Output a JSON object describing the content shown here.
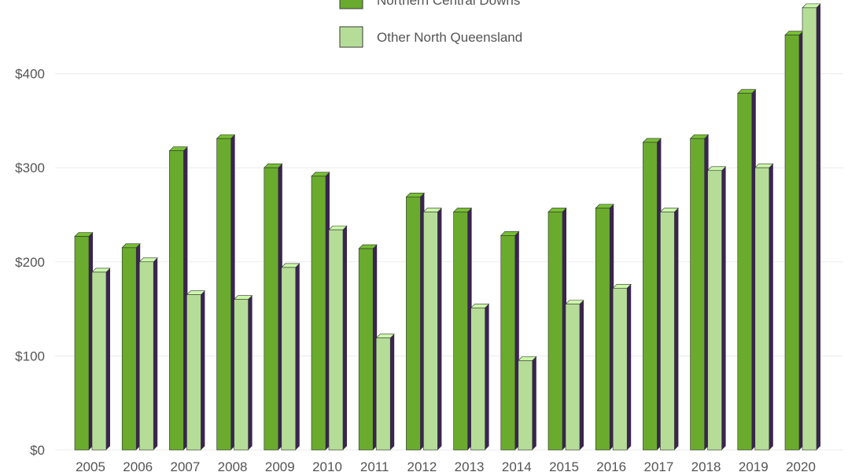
{
  "chart_data": {
    "type": "bar",
    "categories": [
      "2005",
      "2006",
      "2007",
      "2008",
      "2009",
      "2010",
      "2011",
      "2012",
      "2013",
      "2014",
      "2015",
      "2016",
      "2017",
      "2018",
      "2019",
      "2020"
    ],
    "series": [
      {
        "name": "Northern Central Downs",
        "values": [
          227,
          215,
          318,
          331,
          300,
          291,
          214,
          269,
          253,
          228,
          253,
          257,
          327,
          331,
          379,
          441
        ],
        "color": "#6aab2e"
      },
      {
        "name": "Other North Queensland",
        "values": [
          189,
          200,
          165,
          160,
          194,
          234,
          119,
          253,
          151,
          95,
          155,
          172,
          253,
          297,
          300,
          470
        ],
        "color": "#b6dd98"
      }
    ],
    "y_ticks": [
      "$0",
      "$100",
      "$200",
      "$300",
      "$400"
    ],
    "y_tick_values": [
      0,
      100,
      200,
      300,
      400
    ],
    "ylim": [
      0,
      480
    ],
    "grid": true,
    "legend_position": "top-center",
    "bar_side_color": "#3a2450",
    "title": "",
    "xlabel": "",
    "ylabel": ""
  }
}
